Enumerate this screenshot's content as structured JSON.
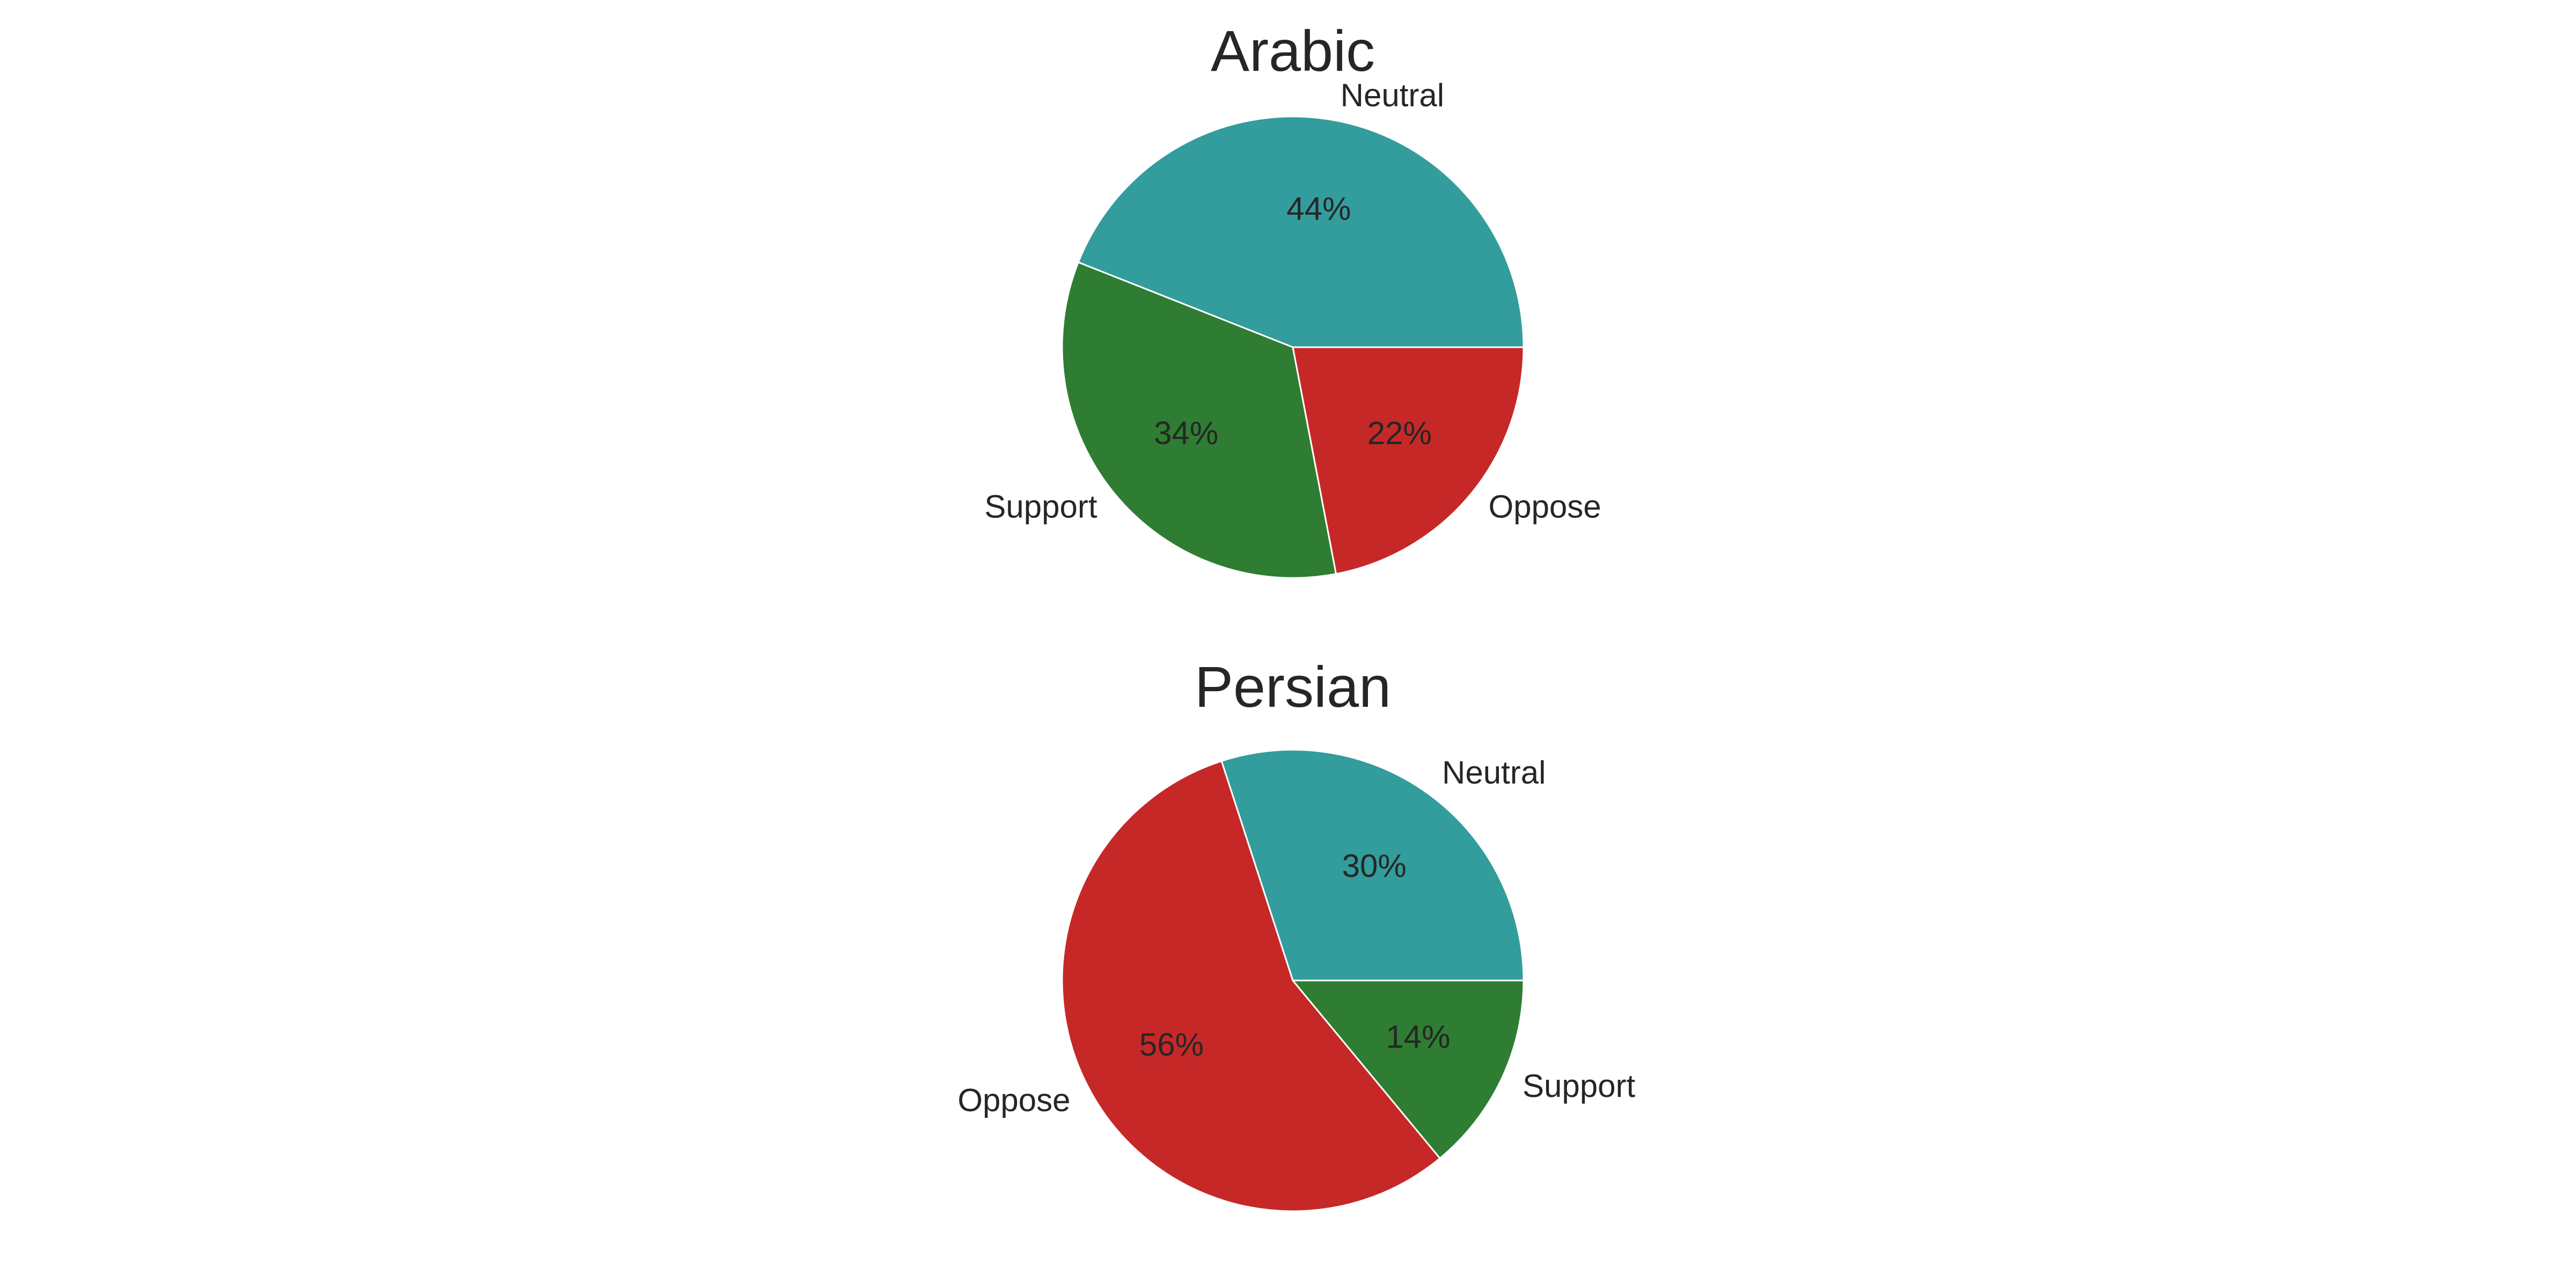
{
  "chart_data": [
    {
      "type": "pie",
      "title": "Arabic",
      "slices": [
        {
          "label": "Neutral",
          "value": 44,
          "color": "#339c9c"
        },
        {
          "label": "Support",
          "value": 34,
          "color": "#2e7d32"
        },
        {
          "label": "Oppose",
          "value": 22,
          "color": "#c62828"
        }
      ],
      "value_labels": [
        "44%",
        "34%",
        "22%"
      ],
      "start_angle_deg": 0,
      "direction": "counterclockwise",
      "legend": "none"
    },
    {
      "type": "pie",
      "title": "Persian",
      "slices": [
        {
          "label": "Neutral",
          "value": 30,
          "color": "#339c9c"
        },
        {
          "label": "Oppose",
          "value": 56,
          "color": "#c62828"
        },
        {
          "label": "Support",
          "value": 14,
          "color": "#2e7d32"
        }
      ],
      "value_labels": [
        "30%",
        "56%",
        "14%"
      ],
      "start_angle_deg": 0,
      "direction": "counterclockwise",
      "legend": "none"
    }
  ]
}
